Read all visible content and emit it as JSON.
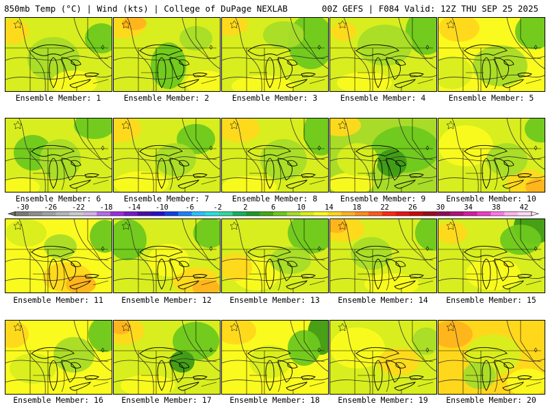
{
  "header": {
    "left": "850mb Temp (°C) | Wind (kts) | College of DuPage NEXLAB",
    "right": "00Z GEFS | F084 Valid: 12Z THU SEP 25 2025"
  },
  "legend": {
    "tick_labels": [
      "-30",
      "-26",
      "-22",
      "-18",
      "-14",
      "-10",
      "-6",
      "-2",
      "2",
      "6",
      "10",
      "14",
      "18",
      "22",
      "26",
      "30",
      "34",
      "38",
      "42"
    ],
    "colors": [
      "#7a7a7a",
      "#8e8e8e",
      "#a2a2a2",
      "#b6b6b6",
      "#cbcbcb",
      "#d2b3e6",
      "#b46ee6",
      "#9a2ee0",
      "#7a18c8",
      "#4b0fa8",
      "#2a10c8",
      "#1040e6",
      "#1c82ff",
      "#2cc0ff",
      "#28e0e0",
      "#30d8a0",
      "#18b060",
      "#1a9a28",
      "#45aa14",
      "#6ec81e",
      "#a8dc28",
      "#d8ee1e",
      "#fafa1e",
      "#ffd81c",
      "#ffb41c",
      "#ff8c1c",
      "#ff5a1c",
      "#ff2814",
      "#e61414",
      "#c80a0a",
      "#9e0a1a",
      "#8c0e5a",
      "#b0127c",
      "#d21ea0",
      "#f03cc8",
      "#ff78e6",
      "#ffb4f0",
      "#ffd8f8"
    ]
  },
  "palette": {
    "dark_green": "#3f9a16",
    "green": "#6ec81e",
    "light_green": "#a8dc28",
    "yellow_green": "#d8ee1e",
    "yellow": "#fafa1e",
    "amber": "#ffd81c",
    "orange": "#ffb41c",
    "contour": "#333333",
    "boundary": "#000000"
  },
  "panels": [
    {
      "label": "Ensemble Member: 1",
      "bg": "#d8ee1e",
      "blobs": [
        [
          "#ffd81c",
          10,
          20,
          24,
          18
        ],
        [
          "#a8dc28",
          70,
          60,
          38,
          32
        ],
        [
          "#6ec81e",
          140,
          30,
          24,
          22
        ],
        [
          "#fafa1e",
          100,
          95,
          34,
          18
        ]
      ]
    },
    {
      "label": "Ensemble Member: 2",
      "bg": "#d8ee1e",
      "blobs": [
        [
          "#ffd81c",
          15,
          10,
          32,
          20
        ],
        [
          "#ffb41c",
          30,
          8,
          18,
          10
        ],
        [
          "#6ec81e",
          80,
          70,
          26,
          34
        ],
        [
          "#fafa1e",
          135,
          95,
          30,
          18
        ],
        [
          "#a8dc28",
          120,
          30,
          24,
          18
        ]
      ]
    },
    {
      "label": "Ensemble Member: 3",
      "bg": "#d8ee1e",
      "blobs": [
        [
          "#ffd81c",
          10,
          10,
          28,
          16
        ],
        [
          "#6ec81e",
          130,
          35,
          34,
          40
        ],
        [
          "#a8dc28",
          90,
          25,
          30,
          20
        ],
        [
          "#fafa1e",
          60,
          100,
          46,
          16
        ]
      ]
    },
    {
      "label": "Ensemble Member: 4",
      "bg": "#d8ee1e",
      "blobs": [
        [
          "#6ec81e",
          140,
          20,
          30,
          34
        ],
        [
          "#a8dc28",
          80,
          40,
          40,
          30
        ],
        [
          "#fafa1e",
          50,
          95,
          40,
          16
        ],
        [
          "#ffd81c",
          20,
          20,
          18,
          14
        ]
      ]
    },
    {
      "label": "Ensemble Member: 5",
      "bg": "#fafa1e",
      "blobs": [
        [
          "#6ec81e",
          140,
          20,
          28,
          26
        ],
        [
          "#a8dc28",
          90,
          70,
          40,
          30
        ],
        [
          "#ffd81c",
          30,
          15,
          30,
          20
        ],
        [
          "#d8ee1e",
          20,
          80,
          30,
          24
        ]
      ]
    },
    {
      "label": "Ensemble Member: 6",
      "bg": "#d8ee1e",
      "blobs": [
        [
          "#6ec81e",
          130,
          10,
          30,
          20
        ],
        [
          "#6ec81e",
          40,
          50,
          28,
          26
        ],
        [
          "#a8dc28",
          80,
          60,
          30,
          30
        ],
        [
          "#fafa1e",
          20,
          100,
          30,
          14
        ]
      ]
    },
    {
      "label": "Ensemble Member: 7",
      "bg": "#d8ee1e",
      "blobs": [
        [
          "#ffd81c",
          10,
          15,
          30,
          20
        ],
        [
          "#6ec81e",
          120,
          30,
          28,
          22
        ],
        [
          "#fafa1e",
          40,
          95,
          40,
          18
        ],
        [
          "#a8dc28",
          90,
          60,
          30,
          24
        ]
      ]
    },
    {
      "label": "Ensemble Member: 8",
      "bg": "#d8ee1e",
      "blobs": [
        [
          "#ffd81c",
          25,
          15,
          30,
          20
        ],
        [
          "#6ec81e",
          145,
          20,
          26,
          34
        ],
        [
          "#a8dc28",
          90,
          60,
          34,
          30
        ],
        [
          "#fafa1e",
          40,
          100,
          40,
          16
        ]
      ]
    },
    {
      "label": "Ensemble Member: 9",
      "bg": "#a8dc28",
      "blobs": [
        [
          "#6ec81e",
          110,
          45,
          50,
          34
        ],
        [
          "#3f9a16",
          90,
          65,
          22,
          20
        ],
        [
          "#ffd81c",
          15,
          10,
          30,
          16
        ],
        [
          "#fafa1e",
          30,
          95,
          34,
          16
        ],
        [
          "#d8ee1e",
          40,
          60,
          30,
          24
        ]
      ]
    },
    {
      "label": "Ensemble Member: 10",
      "bg": "#d8ee1e",
      "blobs": [
        [
          "#fafa1e",
          40,
          40,
          40,
          30
        ],
        [
          "#ffd81c",
          130,
          95,
          30,
          20
        ],
        [
          "#ffb41c",
          145,
          100,
          18,
          12
        ],
        [
          "#6ec81e",
          150,
          15,
          24,
          20
        ],
        [
          "#a8dc28",
          100,
          60,
          30,
          24
        ]
      ]
    },
    {
      "label": "Ensemble Member: 11",
      "bg": "#fafa1e",
      "blobs": [
        [
          "#d8ee1e",
          30,
          20,
          30,
          20
        ],
        [
          "#6ec81e",
          145,
          25,
          22,
          24
        ],
        [
          "#ffd81c",
          90,
          85,
          36,
          22
        ],
        [
          "#ffb41c",
          110,
          95,
          22,
          14
        ],
        [
          "#a8dc28",
          80,
          40,
          24,
          18
        ]
      ]
    },
    {
      "label": "Ensemble Member: 12",
      "bg": "#d8ee1e",
      "blobs": [
        [
          "#6ec81e",
          20,
          30,
          28,
          30
        ],
        [
          "#6ec81e",
          140,
          20,
          24,
          22
        ],
        [
          "#ffd81c",
          120,
          90,
          34,
          20
        ],
        [
          "#ffb41c",
          135,
          100,
          20,
          12
        ],
        [
          "#fafa1e",
          80,
          60,
          30,
          24
        ]
      ]
    },
    {
      "label": "Ensemble Member: 13",
      "bg": "#d8ee1e",
      "blobs": [
        [
          "#6ec81e",
          130,
          20,
          34,
          30
        ],
        [
          "#fafa1e",
          50,
          80,
          34,
          24
        ],
        [
          "#ffd81c",
          20,
          70,
          24,
          20
        ],
        [
          "#a8dc28",
          100,
          60,
          30,
          20
        ]
      ]
    },
    {
      "label": "Ensemble Member: 14",
      "bg": "#d8ee1e",
      "blobs": [
        [
          "#ffd81c",
          20,
          15,
          30,
          18
        ],
        [
          "#ffb41c",
          10,
          10,
          16,
          10
        ],
        [
          "#6ec81e",
          150,
          20,
          26,
          26
        ],
        [
          "#a8dc28",
          60,
          50,
          30,
          24
        ],
        [
          "#fafa1e",
          90,
          95,
          40,
          16
        ]
      ]
    },
    {
      "label": "Ensemble Member: 15",
      "bg": "#d8ee1e",
      "blobs": [
        [
          "#3f9a16",
          140,
          10,
          30,
          26
        ],
        [
          "#6ec81e",
          120,
          30,
          30,
          22
        ],
        [
          "#fafa1e",
          80,
          80,
          40,
          24
        ],
        [
          "#ffd81c",
          20,
          20,
          22,
          16
        ]
      ]
    },
    {
      "label": "Ensemble Member: 16",
      "bg": "#fafa1e",
      "blobs": [
        [
          "#ffd81c",
          10,
          20,
          24,
          20
        ],
        [
          "#6ec81e",
          145,
          20,
          24,
          26
        ],
        [
          "#a8dc28",
          100,
          50,
          30,
          26
        ],
        [
          "#d8ee1e",
          40,
          70,
          34,
          22
        ]
      ]
    },
    {
      "label": "Ensemble Member: 17",
      "bg": "#d8ee1e",
      "blobs": [
        [
          "#ffd81c",
          15,
          15,
          30,
          20
        ],
        [
          "#ffb41c",
          10,
          10,
          16,
          10
        ],
        [
          "#6ec81e",
          120,
          30,
          34,
          28
        ],
        [
          "#3f9a16",
          100,
          60,
          18,
          16
        ],
        [
          "#fafa1e",
          50,
          95,
          40,
          16
        ]
      ]
    },
    {
      "label": "Ensemble Member: 18",
      "bg": "#fafa1e",
      "blobs": [
        [
          "#ffd81c",
          20,
          15,
          30,
          20
        ],
        [
          "#3f9a16",
          145,
          20,
          20,
          30
        ],
        [
          "#6ec81e",
          120,
          40,
          24,
          26
        ],
        [
          "#d8ee1e",
          70,
          60,
          30,
          24
        ]
      ]
    },
    {
      "label": "Ensemble Member: 19",
      "bg": "#d8ee1e",
      "blobs": [
        [
          "#fafa1e",
          40,
          40,
          40,
          30
        ],
        [
          "#ffd81c",
          100,
          60,
          30,
          20
        ],
        [
          "#a8dc28",
          140,
          30,
          20,
          20
        ],
        [
          "#d8ee1e",
          20,
          95,
          30,
          14
        ]
      ]
    },
    {
      "label": "Ensemble Member: 20",
      "bg": "#ffd81c",
      "blobs": [
        [
          "#ffb41c",
          20,
          20,
          30,
          20
        ],
        [
          "#d8ee1e",
          80,
          50,
          40,
          30
        ],
        [
          "#a8dc28",
          60,
          80,
          24,
          20
        ],
        [
          "#fafa1e",
          130,
          90,
          30,
          20
        ]
      ]
    }
  ]
}
